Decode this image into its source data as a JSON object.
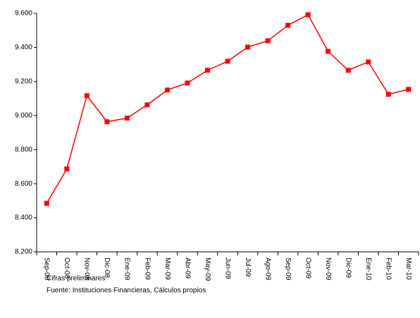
{
  "chart_data": {
    "type": "line",
    "categories": [
      "Sep-08",
      "Oct-08",
      "Nov-08",
      "Dic-08",
      "Ene-09",
      "Feb-09",
      "Mar-09",
      "Abr-09",
      "May-09",
      "Jun-09",
      "Jul-09",
      "Ago-09",
      "Sep-09",
      "Oct-09",
      "Nov-09",
      "Dic-09",
      "Ene-10",
      "Feb-10",
      "Mar-10"
    ],
    "series": [
      {
        "color": "#ff0000",
        "values": [
          8485,
          8687,
          9117,
          8964,
          8985,
          9063,
          9150,
          9191,
          9266,
          9319,
          9402,
          9439,
          9530,
          9592,
          9377,
          9266,
          9315,
          9125,
          9154
        ]
      }
    ],
    "ylim": [
      8200,
      9600
    ],
    "yticks": [
      {
        "value": 8200,
        "label": "8.200"
      },
      {
        "value": 8400,
        "label": "8.400"
      },
      {
        "value": 8600,
        "label": "8.600"
      },
      {
        "value": 8800,
        "label": "8.800"
      },
      {
        "value": 9000,
        "label": "9.000"
      },
      {
        "value": 9200,
        "label": "9.200"
      },
      {
        "value": 9400,
        "label": "9.400"
      },
      {
        "value": 9600,
        "label": "9.600"
      }
    ],
    "notes": [
      "Cifras preliminares",
      "Fuente: Instituciones Financieras, Cálculos propios"
    ]
  }
}
